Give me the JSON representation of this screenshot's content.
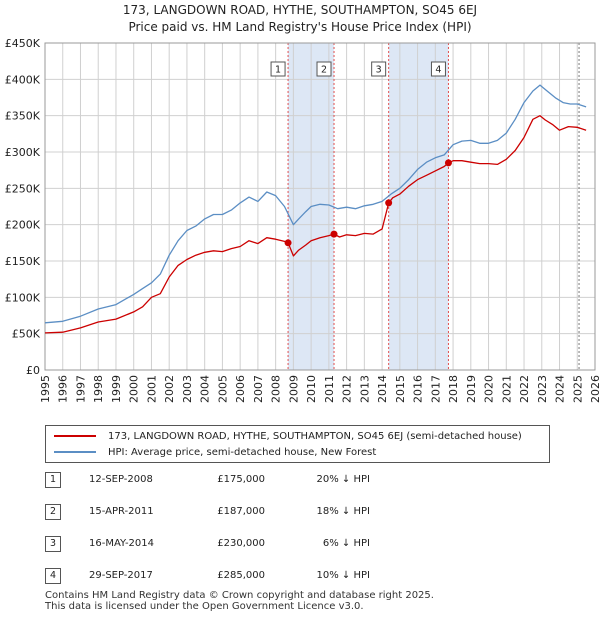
{
  "header": {
    "title_line1": "173, LANGDOWN ROAD, HYTHE, SOUTHAMPTON, SO45 6EJ",
    "title_line2": "Price paid vs. HM Land Registry's House Price Index (HPI)"
  },
  "colors": {
    "price_line": "#cc0000",
    "hpi_line": "#5b8ec4",
    "shade": "#dde7f5",
    "grid": "#d0d0d0",
    "event_line": "#e05050"
  },
  "chart_data": {
    "type": "line",
    "title": "Price paid vs. HM Land Registry's House Price Index (HPI)",
    "xlabel": "",
    "ylabel": "",
    "xlim": [
      1995,
      2026
    ],
    "ylim": [
      0,
      450000
    ],
    "y_ticks": [
      0,
      50000,
      100000,
      150000,
      200000,
      250000,
      300000,
      350000,
      400000,
      450000
    ],
    "y_tick_labels": [
      "£0",
      "£50K",
      "£100K",
      "£150K",
      "£200K",
      "£250K",
      "£300K",
      "£350K",
      "£400K",
      "£450K"
    ],
    "x_ticks": [
      1995,
      1996,
      1997,
      1998,
      1999,
      2000,
      2001,
      2002,
      2003,
      2004,
      2005,
      2006,
      2007,
      2008,
      2009,
      2010,
      2011,
      2012,
      2013,
      2014,
      2015,
      2016,
      2017,
      2018,
      2019,
      2020,
      2021,
      2022,
      2023,
      2024,
      2025,
      2026
    ],
    "grid": true,
    "shaded_spans": [
      [
        2008.7,
        2011.29
      ],
      [
        2014.37,
        2017.74
      ]
    ],
    "data_end_marker": 2025.1,
    "series": [
      {
        "name": "173, LANGDOWN ROAD, HYTHE, SOUTHAMPTON, SO45 6EJ (semi-detached house)",
        "x": [
          1995.0,
          1996.0,
          1997.0,
          1998.0,
          1999.0,
          2000.0,
          2000.5,
          2001.0,
          2001.5,
          2002.0,
          2002.5,
          2003.0,
          2003.5,
          2004.0,
          2004.5,
          2005.0,
          2005.5,
          2006.0,
          2006.5,
          2007.0,
          2007.5,
          2008.0,
          2008.5,
          2008.7,
          2009.0,
          2009.3,
          2009.7,
          2010.0,
          2010.5,
          2011.0,
          2011.29,
          2011.6,
          2012.0,
          2012.5,
          2013.0,
          2013.5,
          2014.0,
          2014.37,
          2014.6,
          2015.0,
          2015.5,
          2016.0,
          2016.5,
          2017.0,
          2017.5,
          2017.74,
          2018.0,
          2018.5,
          2019.0,
          2019.5,
          2020.0,
          2020.5,
          2021.0,
          2021.5,
          2022.0,
          2022.5,
          2022.9,
          2023.2,
          2023.6,
          2024.0,
          2024.5,
          2025.0,
          2025.5
        ],
        "y": [
          51000,
          52000,
          58000,
          66000,
          70000,
          80000,
          87000,
          100000,
          105000,
          128000,
          144000,
          152000,
          158000,
          162000,
          164000,
          163000,
          167000,
          170000,
          178000,
          174000,
          182000,
          180000,
          177000,
          175000,
          157000,
          165000,
          172000,
          178000,
          182000,
          185000,
          187000,
          183000,
          186000,
          185000,
          188000,
          187000,
          194000,
          230000,
          237000,
          242000,
          253000,
          262000,
          268000,
          274000,
          280000,
          285000,
          288000,
          288000,
          286000,
          284000,
          284000,
          283000,
          290000,
          302000,
          320000,
          345000,
          350000,
          344000,
          338000,
          330000,
          335000,
          334000,
          330000
        ]
      },
      {
        "name": "HPI: Average price, semi-detached house, New Forest",
        "x": [
          1995.0,
          1996.0,
          1997.0,
          1998.0,
          1999.0,
          2000.0,
          2000.5,
          2001.0,
          2001.5,
          2002.0,
          2002.5,
          2003.0,
          2003.5,
          2004.0,
          2004.5,
          2005.0,
          2005.5,
          2006.0,
          2006.5,
          2007.0,
          2007.5,
          2008.0,
          2008.5,
          2009.0,
          2009.3,
          2009.7,
          2010.0,
          2010.5,
          2011.0,
          2011.5,
          2012.0,
          2012.5,
          2013.0,
          2013.5,
          2014.0,
          2014.5,
          2015.0,
          2015.5,
          2016.0,
          2016.5,
          2017.0,
          2017.5,
          2018.0,
          2018.5,
          2019.0,
          2019.5,
          2020.0,
          2020.5,
          2021.0,
          2021.5,
          2022.0,
          2022.5,
          2022.9,
          2023.3,
          2023.8,
          2024.2,
          2024.6,
          2025.0,
          2025.5
        ],
        "y": [
          65000,
          67000,
          74000,
          84000,
          90000,
          104000,
          112000,
          120000,
          132000,
          158000,
          178000,
          192000,
          198000,
          208000,
          214000,
          214000,
          220000,
          230000,
          238000,
          232000,
          245000,
          240000,
          225000,
          200000,
          208000,
          218000,
          225000,
          228000,
          227000,
          222000,
          224000,
          222000,
          226000,
          228000,
          232000,
          242000,
          250000,
          262000,
          276000,
          286000,
          292000,
          296000,
          310000,
          315000,
          316000,
          312000,
          312000,
          316000,
          326000,
          345000,
          368000,
          384000,
          392000,
          384000,
          374000,
          368000,
          366000,
          366000,
          362000
        ]
      }
    ],
    "sales": [
      {
        "id": "1",
        "x": 2008.7,
        "price": 175000
      },
      {
        "id": "2",
        "x": 2011.29,
        "price": 187000
      },
      {
        "id": "3",
        "x": 2014.37,
        "price": 230000
      },
      {
        "id": "4",
        "x": 2017.74,
        "price": 285000
      }
    ]
  },
  "legend": {
    "price_label": "173, LANGDOWN ROAD, HYTHE, SOUTHAMPTON, SO45 6EJ (semi-detached house)",
    "hpi_label": "HPI: Average price, semi-detached house, New Forest"
  },
  "sales_table": [
    {
      "num": "1",
      "date": "12-SEP-2008",
      "price": "£175,000",
      "hpi": "20% ↓ HPI"
    },
    {
      "num": "2",
      "date": "15-APR-2011",
      "price": "£187,000",
      "hpi": "18% ↓ HPI"
    },
    {
      "num": "3",
      "date": "16-MAY-2014",
      "price": "£230,000",
      "hpi": "6% ↓ HPI"
    },
    {
      "num": "4",
      "date": "29-SEP-2017",
      "price": "£285,000",
      "hpi": "10% ↓ HPI"
    }
  ],
  "footer": {
    "line1": "Contains HM Land Registry data © Crown copyright and database right 2025.",
    "line2": "This data is licensed under the Open Government Licence v3.0."
  }
}
